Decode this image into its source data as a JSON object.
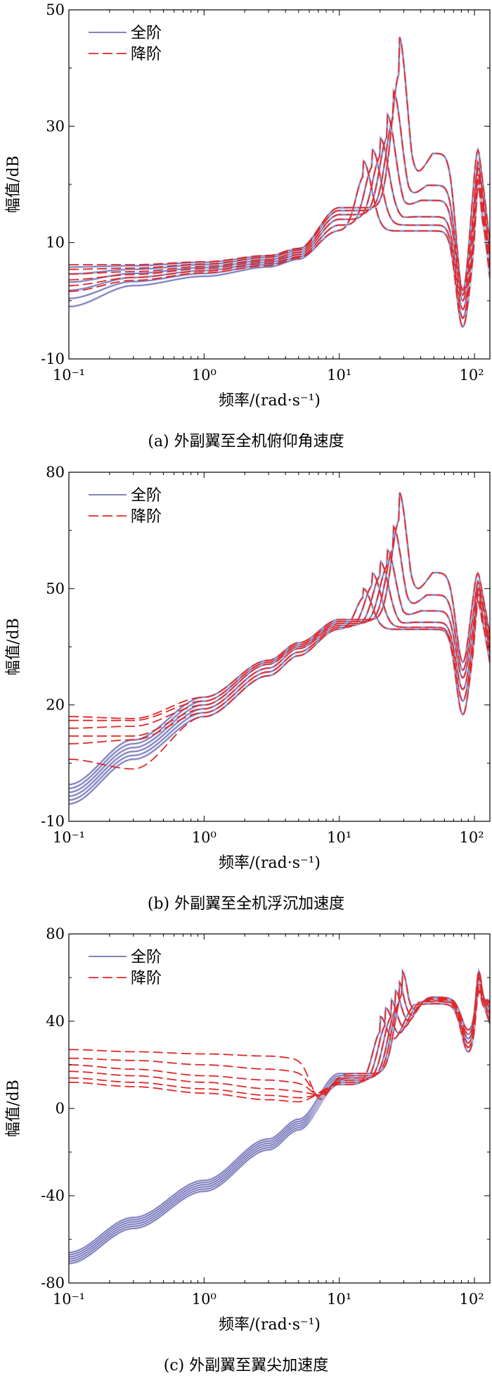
{
  "colors": {
    "full_order": "#5a5aa8",
    "full_order_band": "#c8c8e6",
    "reduced_order": "#e02828",
    "axis": "#000000"
  },
  "chart_data": [
    {
      "type": "line",
      "caption": "(a) 外副翼至全机俯仰角速度",
      "xlabel": "频率/(rad·s⁻¹)",
      "ylabel": "幅值/dB",
      "x_scale": "log",
      "xlim": [
        0.1,
        130
      ],
      "ylim": [
        -10,
        50
      ],
      "xticks": [
        {
          "value": 0.1,
          "label": "10⁻¹"
        },
        {
          "value": 1,
          "label": "10⁰"
        },
        {
          "value": 10,
          "label": "10¹"
        },
        {
          "value": 100,
          "label": "10²"
        }
      ],
      "yticks": [
        -10,
        10,
        30,
        50
      ],
      "legend": {
        "position": "top-left",
        "entries": [
          {
            "label": "全阶",
            "style": "solid"
          },
          {
            "label": "降阶",
            "style": "dashed"
          }
        ]
      },
      "curve_family": {
        "count": 6,
        "full_order_x": [
          0.1,
          0.3,
          1,
          3,
          5,
          10
        ],
        "full_order_y": [
          [
            -1,
            2.6,
            4.2,
            5.8,
            7.0,
            12.0
          ],
          [
            0.4,
            3.3,
            4.7,
            6.2,
            7.4,
            13.0
          ],
          [
            1.8,
            4.0,
            5.2,
            6.6,
            7.8,
            14.0
          ],
          [
            3.2,
            4.7,
            5.7,
            7.0,
            8.2,
            14.8
          ],
          [
            4.6,
            5.4,
            6.2,
            7.4,
            8.6,
            15.5
          ],
          [
            5.8,
            6.0,
            6.6,
            7.7,
            8.9,
            16.0
          ]
        ],
        "reduced_order_low_freq_y": [
          [
            1.6,
            3.5,
            4.8,
            6.0,
            7.2,
            12.0
          ],
          [
            2.6,
            4.0,
            5.1,
            6.4,
            7.5,
            13.0
          ],
          [
            3.6,
            4.5,
            5.5,
            6.8,
            7.9,
            14.0
          ],
          [
            4.6,
            5.0,
            5.9,
            7.1,
            8.3,
            14.8
          ],
          [
            5.4,
            5.6,
            6.3,
            7.5,
            8.7,
            15.5
          ],
          [
            6.2,
            6.2,
            6.7,
            7.8,
            9.0,
            16.0
          ]
        ],
        "resonance_x": [
          15,
          17.5,
          20,
          22.5,
          25,
          27.5
        ],
        "resonance_peak_y": [
          24.0,
          26.0,
          28.0,
          32.0,
          36.0,
          45.5
        ],
        "notch_x": 82,
        "notch_y": [
          -4.5,
          -3,
          -1.5,
          0,
          1,
          1.8
        ],
        "high_peak_x": 107,
        "high_peak_y": [
          20,
          21,
          22,
          23,
          24,
          26
        ]
      }
    },
    {
      "type": "line",
      "caption": "(b) 外副翼至全机浮沉加速度",
      "xlabel": "频率/(rad·s⁻¹)",
      "ylabel": "幅值/dB",
      "x_scale": "log",
      "xlim": [
        0.1,
        130
      ],
      "ylim": [
        -10,
        80
      ],
      "xticks": [
        {
          "value": 0.1,
          "label": "10⁻¹"
        },
        {
          "value": 1,
          "label": "10⁰"
        },
        {
          "value": 10,
          "label": "10¹"
        },
        {
          "value": 100,
          "label": "10²"
        }
      ],
      "yticks": [
        -10,
        20,
        50,
        80
      ],
      "legend": {
        "position": "top-left",
        "entries": [
          {
            "label": "全阶",
            "style": "solid"
          },
          {
            "label": "降阶",
            "style": "dashed"
          }
        ]
      },
      "curve_family": {
        "count": 6,
        "full_order_x": [
          0.1,
          0.3,
          1,
          3,
          5,
          10
        ],
        "full_order_y": [
          [
            -5.5,
            6,
            17,
            27.5,
            32.5,
            39.5
          ],
          [
            -4.5,
            7,
            18,
            28.5,
            33.5,
            40.0
          ],
          [
            -3.5,
            8,
            19,
            29.5,
            34.5,
            40.5
          ],
          [
            -2.5,
            9,
            20,
            30.5,
            35.0,
            41.0
          ],
          [
            -1.5,
            10,
            21,
            31.0,
            35.5,
            41.5
          ],
          [
            -0.5,
            11,
            22,
            31.5,
            36.0,
            42.0
          ]
        ],
        "reduced_order_low_freq_y": [
          [
            6,
            3.5,
            17,
            27.5,
            32.5,
            39.5
          ],
          [
            10,
            11,
            18,
            28.5,
            33.5,
            40.0
          ],
          [
            12,
            12,
            19,
            29.5,
            34.5,
            40.5
          ],
          [
            14,
            14.5,
            20,
            30.5,
            35.0,
            41.0
          ],
          [
            16,
            16,
            21,
            31.0,
            35.5,
            41.5
          ],
          [
            17,
            16.5,
            22,
            31.5,
            36.0,
            42.0
          ]
        ],
        "resonance_x": [
          15,
          17.5,
          20,
          22.5,
          25,
          27.5
        ],
        "resonance_peak_y": [
          50,
          54,
          57,
          60,
          66,
          75
        ],
        "notch_x": 82,
        "notch_y": [
          17.5,
          21,
          24,
          27,
          29,
          31
        ],
        "high_peak_x": 107,
        "high_peak_y": [
          47,
          49,
          50,
          51,
          52,
          54
        ]
      }
    },
    {
      "type": "line",
      "caption": "(c) 外副翼至翼尖加速度",
      "xlabel": "频率/(rad·s⁻¹)",
      "ylabel": "幅值/dB",
      "x_scale": "log",
      "xlim": [
        0.1,
        130
      ],
      "ylim": [
        -80,
        80
      ],
      "xticks": [
        {
          "value": 0.1,
          "label": "10⁻¹"
        },
        {
          "value": 1,
          "label": "10⁰"
        },
        {
          "value": 10,
          "label": "10¹"
        },
        {
          "value": 100,
          "label": "10²"
        }
      ],
      "yticks": [
        -80,
        -40,
        0,
        40,
        80
      ],
      "legend": {
        "position": "top-left",
        "entries": [
          {
            "label": "全阶",
            "style": "solid"
          },
          {
            "label": "降阶",
            "style": "dashed"
          }
        ]
      },
      "curve_family": {
        "count": 6,
        "full_order_x": [
          0.1,
          0.3,
          1,
          3,
          5,
          10
        ],
        "full_order_y": [
          [
            -71,
            -55,
            -38,
            -19,
            -10,
            11
          ],
          [
            -70,
            -54,
            -37,
            -18,
            -9,
            12
          ],
          [
            -69,
            -53,
            -36,
            -17,
            -8,
            13
          ],
          [
            -68,
            -52,
            -35,
            -16,
            -7,
            14
          ],
          [
            -67,
            -51,
            -34,
            -15,
            -6,
            15
          ],
          [
            -66,
            -50,
            -33,
            -14,
            -5,
            16
          ]
        ],
        "reduced_order_low_freq_y": [
          [
            12,
            10,
            7,
            4,
            3,
            11
          ],
          [
            14,
            12,
            9,
            6,
            5,
            12
          ],
          [
            17,
            15,
            12,
            9,
            8,
            13
          ],
          [
            20,
            18,
            15,
            13,
            12,
            14
          ],
          [
            23,
            22,
            20,
            18,
            17,
            15
          ],
          [
            27,
            26,
            25,
            24,
            23,
            16
          ]
        ],
        "reduced_order_dip_x": 7.2,
        "reduced_order_dip_y": -8,
        "resonance_x": [
          20,
          22,
          24,
          26,
          27.5,
          29
        ],
        "resonance_peak_y": [
          42,
          46,
          50,
          54,
          58,
          63
        ],
        "mid_peak_x": 50,
        "mid_peak_y": [
          48,
          49,
          49.5,
          50,
          50.5,
          51
        ],
        "notch_x": 90,
        "notch_y": [
          26,
          28,
          30,
          32,
          34,
          36
        ],
        "high_peak_x": 108,
        "high_peak_y": [
          54,
          56,
          58,
          60,
          62,
          63
        ]
      }
    }
  ]
}
